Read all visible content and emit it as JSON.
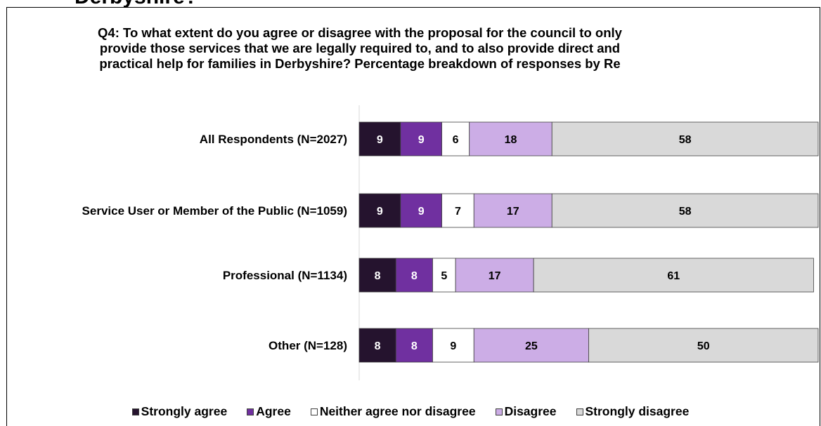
{
  "page": {
    "top_heading": "Derbyshire?"
  },
  "chart_data": {
    "type": "bar",
    "orientation": "horizontal",
    "stacked": true,
    "title": "Q4: To what extent do you agree or disagree with the proposal for the council to only provide those services that we are legally required to, and to also provide direct and practical help for families in Derbyshire? Percentage breakdown of responses by Re",
    "categories": [
      "All Respondents (N=2027)",
      "Service User or Member of the Public (N=1059)",
      "Professional (N=1134)",
      "Other (N=128)"
    ],
    "series": [
      {
        "name": "Strongly agree",
        "values": [
          9,
          9,
          8,
          8
        ],
        "color": "#25132e",
        "label_color": "#ffffff"
      },
      {
        "name": "Agree",
        "values": [
          9,
          9,
          8,
          8
        ],
        "color": "#7030a0",
        "label_color": "#ffffff"
      },
      {
        "name": "Neither agree nor disagree",
        "values": [
          6,
          7,
          5,
          9
        ],
        "color": "#ffffff",
        "label_color": "#000000"
      },
      {
        "name": "Disagree",
        "values": [
          18,
          17,
          17,
          25
        ],
        "color": "#ccade6",
        "label_color": "#000000"
      },
      {
        "name": "Strongly disagree",
        "values": [
          58,
          58,
          61,
          50
        ],
        "color": "#d9d9d9",
        "label_color": "#000000"
      }
    ],
    "xlim": [
      0,
      100
    ],
    "grid": false,
    "legend_position": "bottom"
  }
}
